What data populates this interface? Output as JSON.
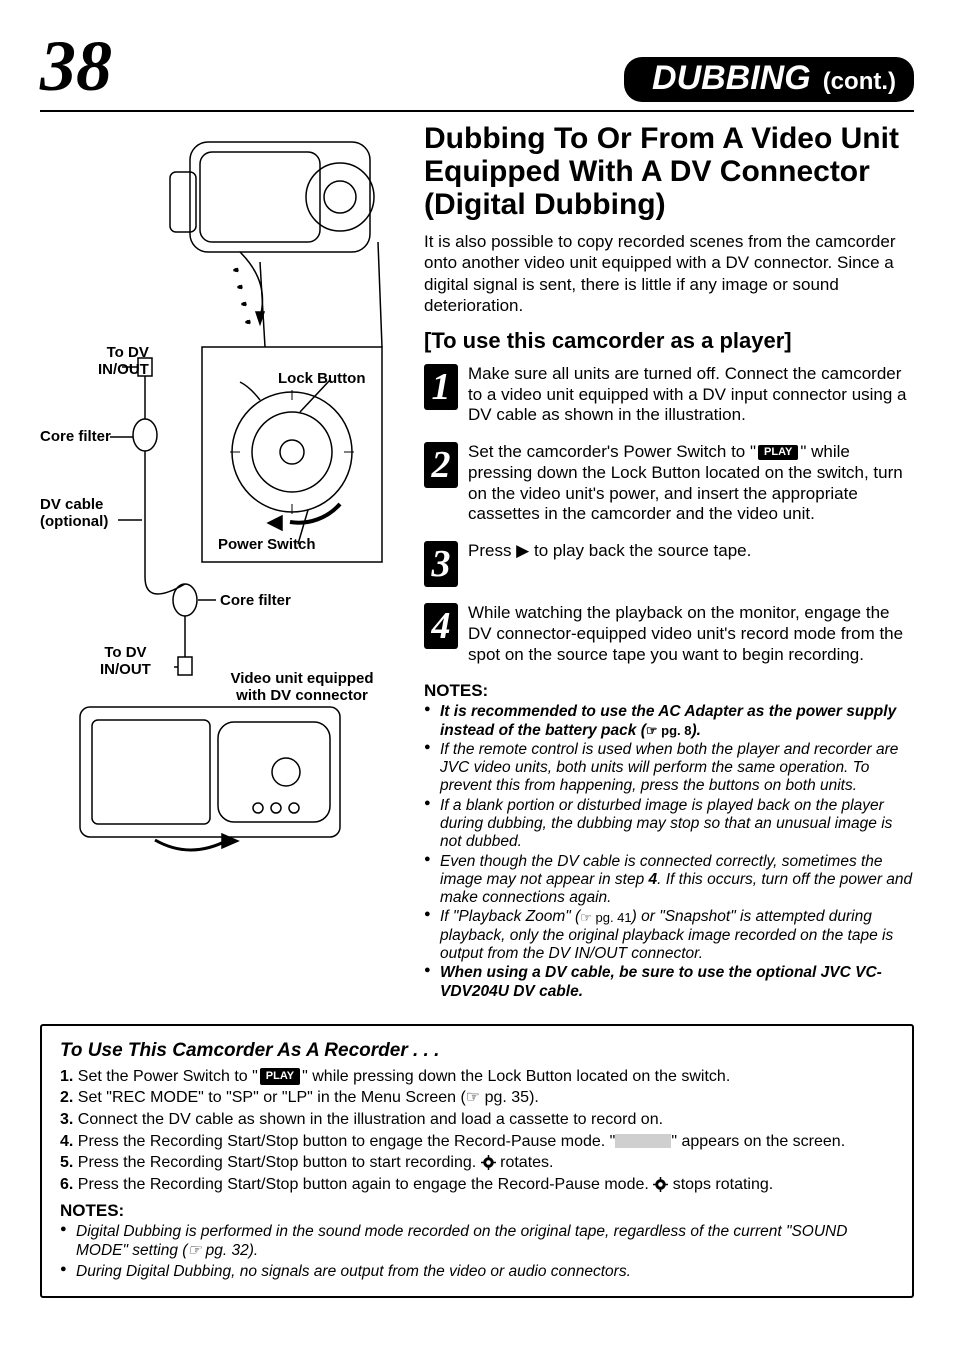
{
  "page_number": "38",
  "header": {
    "main": "DUBBING",
    "cont": "(cont.)"
  },
  "colors": {
    "text": "#000000",
    "bg": "#ffffff",
    "pill_bg": "#000000",
    "pill_fg": "#ffffff",
    "stepbox_bg": "#000000",
    "stepbox_fg": "#ffffff",
    "blank_badge": "#cfcfcf"
  },
  "illustration": {
    "labels": {
      "to_dv_top": "To DV\nIN/OUT",
      "core_filter_top": "Core filter",
      "lock_button": "Lock Button",
      "dv_cable": "DV cable\n(optional)",
      "power_switch": "Power Switch",
      "core_filter_mid": "Core filter",
      "to_dv_bottom": "To DV\nIN/OUT",
      "video_unit": "Video unit equipped\nwith DV connector"
    }
  },
  "section": {
    "title": "Dubbing To Or From A Video Unit Equipped With A DV Connector (Digital Dubbing)",
    "intro": "It is also possible to copy recorded scenes from the camcorder onto another video unit equipped with a DV connector. Since a digital signal is sent, there is little if any image or sound deterioration.",
    "subhead": "[To use this camcorder as a player]"
  },
  "steps": [
    {
      "num": "1",
      "body_before": "Make sure all units are turned off. Connect the camcorder to a video unit equipped with a DV input connector using a DV cable as shown in the illustration.",
      "badge": null,
      "body_after": ""
    },
    {
      "num": "2",
      "body_before": "Set the camcorder's Power Switch to \"",
      "badge": "PLAY",
      "body_after": "\" while pressing down the Lock Button located on the switch, turn on the video unit's power, and insert the appropriate cassettes in the camcorder and the video unit."
    },
    {
      "num": "3",
      "body_before": "Press ▶ to play back the source tape.",
      "badge": null,
      "body_after": ""
    },
    {
      "num": "4",
      "body_before": "While watching the playback on the monitor, engage the DV connector-equipped video unit's record mode from the spot on the source tape you want to begin recording.",
      "badge": null,
      "body_after": ""
    }
  ],
  "notes": {
    "header": "NOTES:",
    "items": [
      {
        "bold": true,
        "text_before": "It is recommended to use the AC Adapter as the power supply instead of the battery pack (",
        "ref": "☞ pg. 8",
        "text_after": ")."
      },
      {
        "bold": false,
        "text_before": "If the remote control is used when both the player and recorder are JVC video units, both units will perform the same operation. To prevent this from happening, press the buttons on both units.",
        "ref": null,
        "text_after": ""
      },
      {
        "bold": false,
        "text_before": "If a blank portion or disturbed image is played back on the player during dubbing, the dubbing may stop so that an unusual image is not dubbed.",
        "ref": null,
        "text_after": ""
      },
      {
        "bold": false,
        "text_before": "Even though the DV cable is connected correctly, sometimes the image may not appear in step ",
        "ref": null,
        "text_after": "",
        "bold_inline": "4",
        "tail": ". If this occurs, turn off the power and make connections again."
      },
      {
        "bold": false,
        "text_before": "If \"Playback Zoom\" (",
        "ref": "☞ pg. 41",
        "text_after": ") or \"Snapshot\" is attempted during playback, only the original playback image recorded on the tape is output from the DV IN/OUT connector."
      },
      {
        "bold": true,
        "text_before": "When using a DV cable, be sure to use the optional JVC VC-VDV204U DV cable.",
        "ref": null,
        "text_after": ""
      }
    ]
  },
  "recorder": {
    "title": "To Use This Camcorder As A Recorder . . .",
    "lines": [
      {
        "n": "1.",
        "before": "Set the Power Switch to \"",
        "badge": "PLAY",
        "after": "\" while pressing down the Lock Button located on the switch."
      },
      {
        "n": "2.",
        "before": "Set \"REC MODE\" to \"SP\" or \"LP\" in the Menu Screen (",
        "ref": "☞ pg. 35",
        "after": ")."
      },
      {
        "n": "3.",
        "before": "Connect the DV cable as shown in the illustration and load a cassette to record on.",
        "after": ""
      },
      {
        "n": "4.",
        "before": "Press the Recording Start/Stop button to engage the Record-Pause mode. \"",
        "blank": true,
        "after": "\" appears on the screen."
      },
      {
        "n": "5.",
        "before": "Press the Recording Start/Stop button to start recording. ",
        "gear": true,
        "after": " rotates."
      },
      {
        "n": "6.",
        "before": "Press the Recording Start/Stop button again to engage the Record-Pause mode. ",
        "gear": true,
        "after": " stops rotating."
      }
    ],
    "notes_header": "NOTES:",
    "notes": [
      {
        "text_before": "Digital Dubbing is performed in the sound mode recorded on the original tape, regardless of the current \"SOUND MODE\" setting (",
        "ref": "☞ pg. 32",
        "text_after": ")."
      },
      {
        "text_before": "During Digital Dubbing, no signals are output from the video or audio connectors.",
        "ref": null,
        "text_after": ""
      }
    ]
  }
}
